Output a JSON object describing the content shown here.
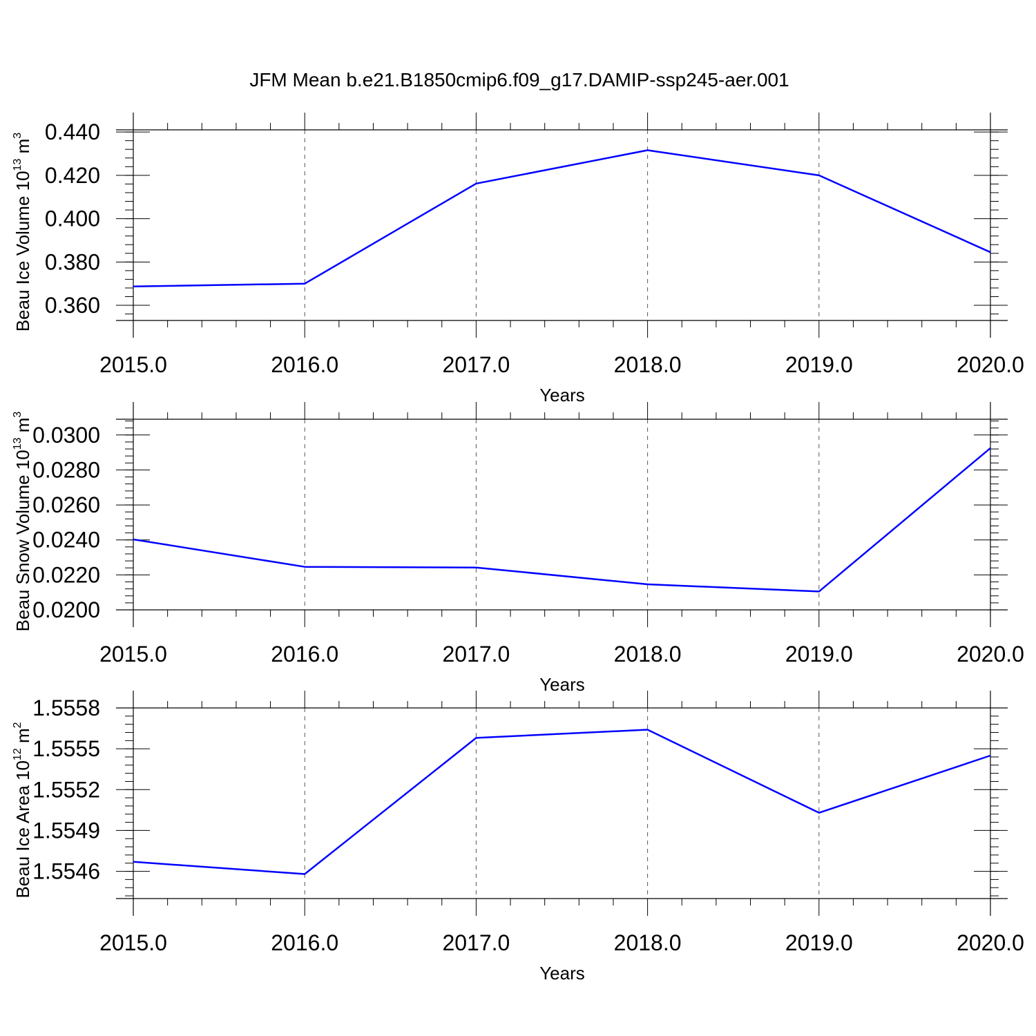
{
  "colors": {
    "line": "#0000ff",
    "axis": "#000000",
    "grid": "#555555"
  },
  "chart_data": [
    {
      "type": "line",
      "title": "JFM Mean b.e21.B1850cmip6.f09_g17.DAMIP-ssp245-aer.001",
      "ylabel_base": "Beau Ice Volume 10",
      "ylabel_exp": "13",
      "ylabel_unit": " m",
      "ylabel_unit_exp": "3",
      "xlabel": "Years",
      "x": [
        2015,
        2016,
        2017,
        2018,
        2019,
        2020
      ],
      "y": [
        0.3687,
        0.37,
        0.4162,
        0.4316,
        0.42,
        0.3845
      ],
      "xlim": [
        2015,
        2020
      ],
      "ylim": [
        0.353,
        0.441
      ],
      "yticks": [
        0.36,
        0.38,
        0.4,
        0.42,
        0.44
      ],
      "yticklabels": [
        "0.360",
        "0.380",
        "0.400",
        "0.420",
        "0.440"
      ],
      "yminor_step": 0.004,
      "xticks": [
        2015,
        2016,
        2017,
        2018,
        2019,
        2020
      ],
      "xticklabels": [
        "2015.0",
        "2016.0",
        "2017.0",
        "2018.0",
        "2019.0",
        "2020.0"
      ],
      "xminor_step": 0.2,
      "grid": "vertical-dashed"
    },
    {
      "type": "line",
      "ylabel_base": "Beau Snow Volume 10",
      "ylabel_exp": "13",
      "ylabel_unit": " m",
      "ylabel_unit_exp": "3",
      "xlabel": "Years",
      "x": [
        2015,
        2016,
        2017,
        2018,
        2019,
        2020
      ],
      "y": [
        0.02403,
        0.02246,
        0.02242,
        0.02146,
        0.02105,
        0.02925
      ],
      "xlim": [
        2015,
        2020
      ],
      "ylim": [
        0.02,
        0.0309
      ],
      "yticks": [
        0.02,
        0.022,
        0.024,
        0.026,
        0.028,
        0.03
      ],
      "yticklabels": [
        "0.0200",
        "0.0220",
        "0.0240",
        "0.0260",
        "0.0280",
        "0.0300"
      ],
      "yminor_step": 0.0004,
      "xticks": [
        2015,
        2016,
        2017,
        2018,
        2019,
        2020
      ],
      "xticklabels": [
        "2015.0",
        "2016.0",
        "2017.0",
        "2018.0",
        "2019.0",
        "2020.0"
      ],
      "xminor_step": 0.2,
      "grid": "vertical-dashed"
    },
    {
      "type": "line",
      "ylabel_base": "Beau Ice Area 10",
      "ylabel_exp": "12",
      "ylabel_unit": " m",
      "ylabel_unit_exp": "2",
      "xlabel": "Years",
      "x": [
        2015,
        2016,
        2017,
        2018,
        2019,
        2020
      ],
      "y": [
        1.55467,
        1.55458,
        1.55558,
        1.55564,
        1.55503,
        1.55545
      ],
      "xlim": [
        2015,
        2020
      ],
      "ylim": [
        1.5544,
        1.5558
      ],
      "yticks": [
        1.5546,
        1.5549,
        1.5552,
        1.5555,
        1.5558
      ],
      "yticklabels": [
        "1.5546",
        "1.5549",
        "1.5552",
        "1.5555",
        "1.5558"
      ],
      "yminor_step": 6e-05,
      "xticks": [
        2015,
        2016,
        2017,
        2018,
        2019,
        2020
      ],
      "xticklabels": [
        "2015.0",
        "2016.0",
        "2017.0",
        "2018.0",
        "2019.0",
        "2020.0"
      ],
      "xminor_step": 0.2,
      "grid": "vertical-dashed"
    }
  ]
}
